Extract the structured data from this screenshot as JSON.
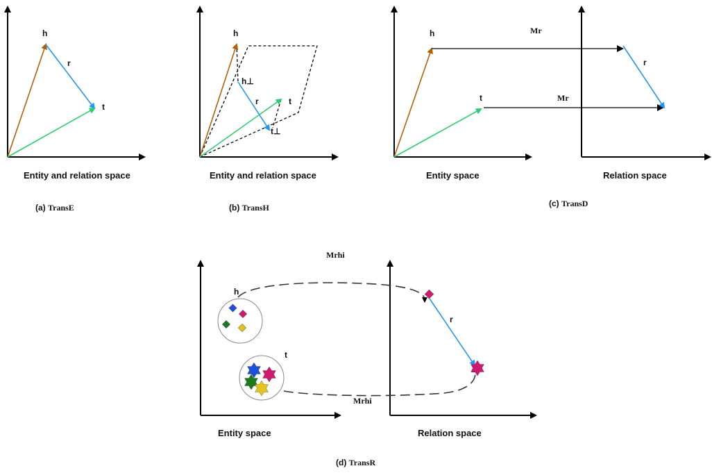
{
  "panel_a": {
    "space_label": "Entity and relation space",
    "caption_prefix": "(a) ",
    "caption_name": "TransE",
    "h": "h",
    "r": "r",
    "t": "t"
  },
  "panel_b": {
    "space_label": "Entity and relation space",
    "caption_prefix": "(b) ",
    "caption_name": "TransH",
    "h": "h",
    "r": "r",
    "t": "t",
    "h_perp": "h⊥",
    "t_perp": "t⊥"
  },
  "panel_c": {
    "space_left": "Entity space",
    "space_right": "Relation space",
    "caption_prefix": "(c) ",
    "caption_name": "TransD",
    "h": "h",
    "r": "r",
    "t": "t",
    "mr_top": "Mr",
    "mr_bottom": "Mr"
  },
  "panel_d": {
    "space_left": "Entity space",
    "space_right": "Relation space",
    "caption_prefix": "(d) ",
    "caption_name": "TransR",
    "h": "h",
    "r": "r",
    "t": "t",
    "mrhi_top": "Mrhi",
    "mrhi_bottom": "Mrhi"
  },
  "colors": {
    "head_vector": "#b45f06",
    "relation_vector": "#2196f3",
    "tail_vector": "#2ecc71",
    "blue": "#1e4fd8",
    "magenta": "#d0186e",
    "green": "#1b7a1b",
    "yellow": "#e3c41a"
  }
}
